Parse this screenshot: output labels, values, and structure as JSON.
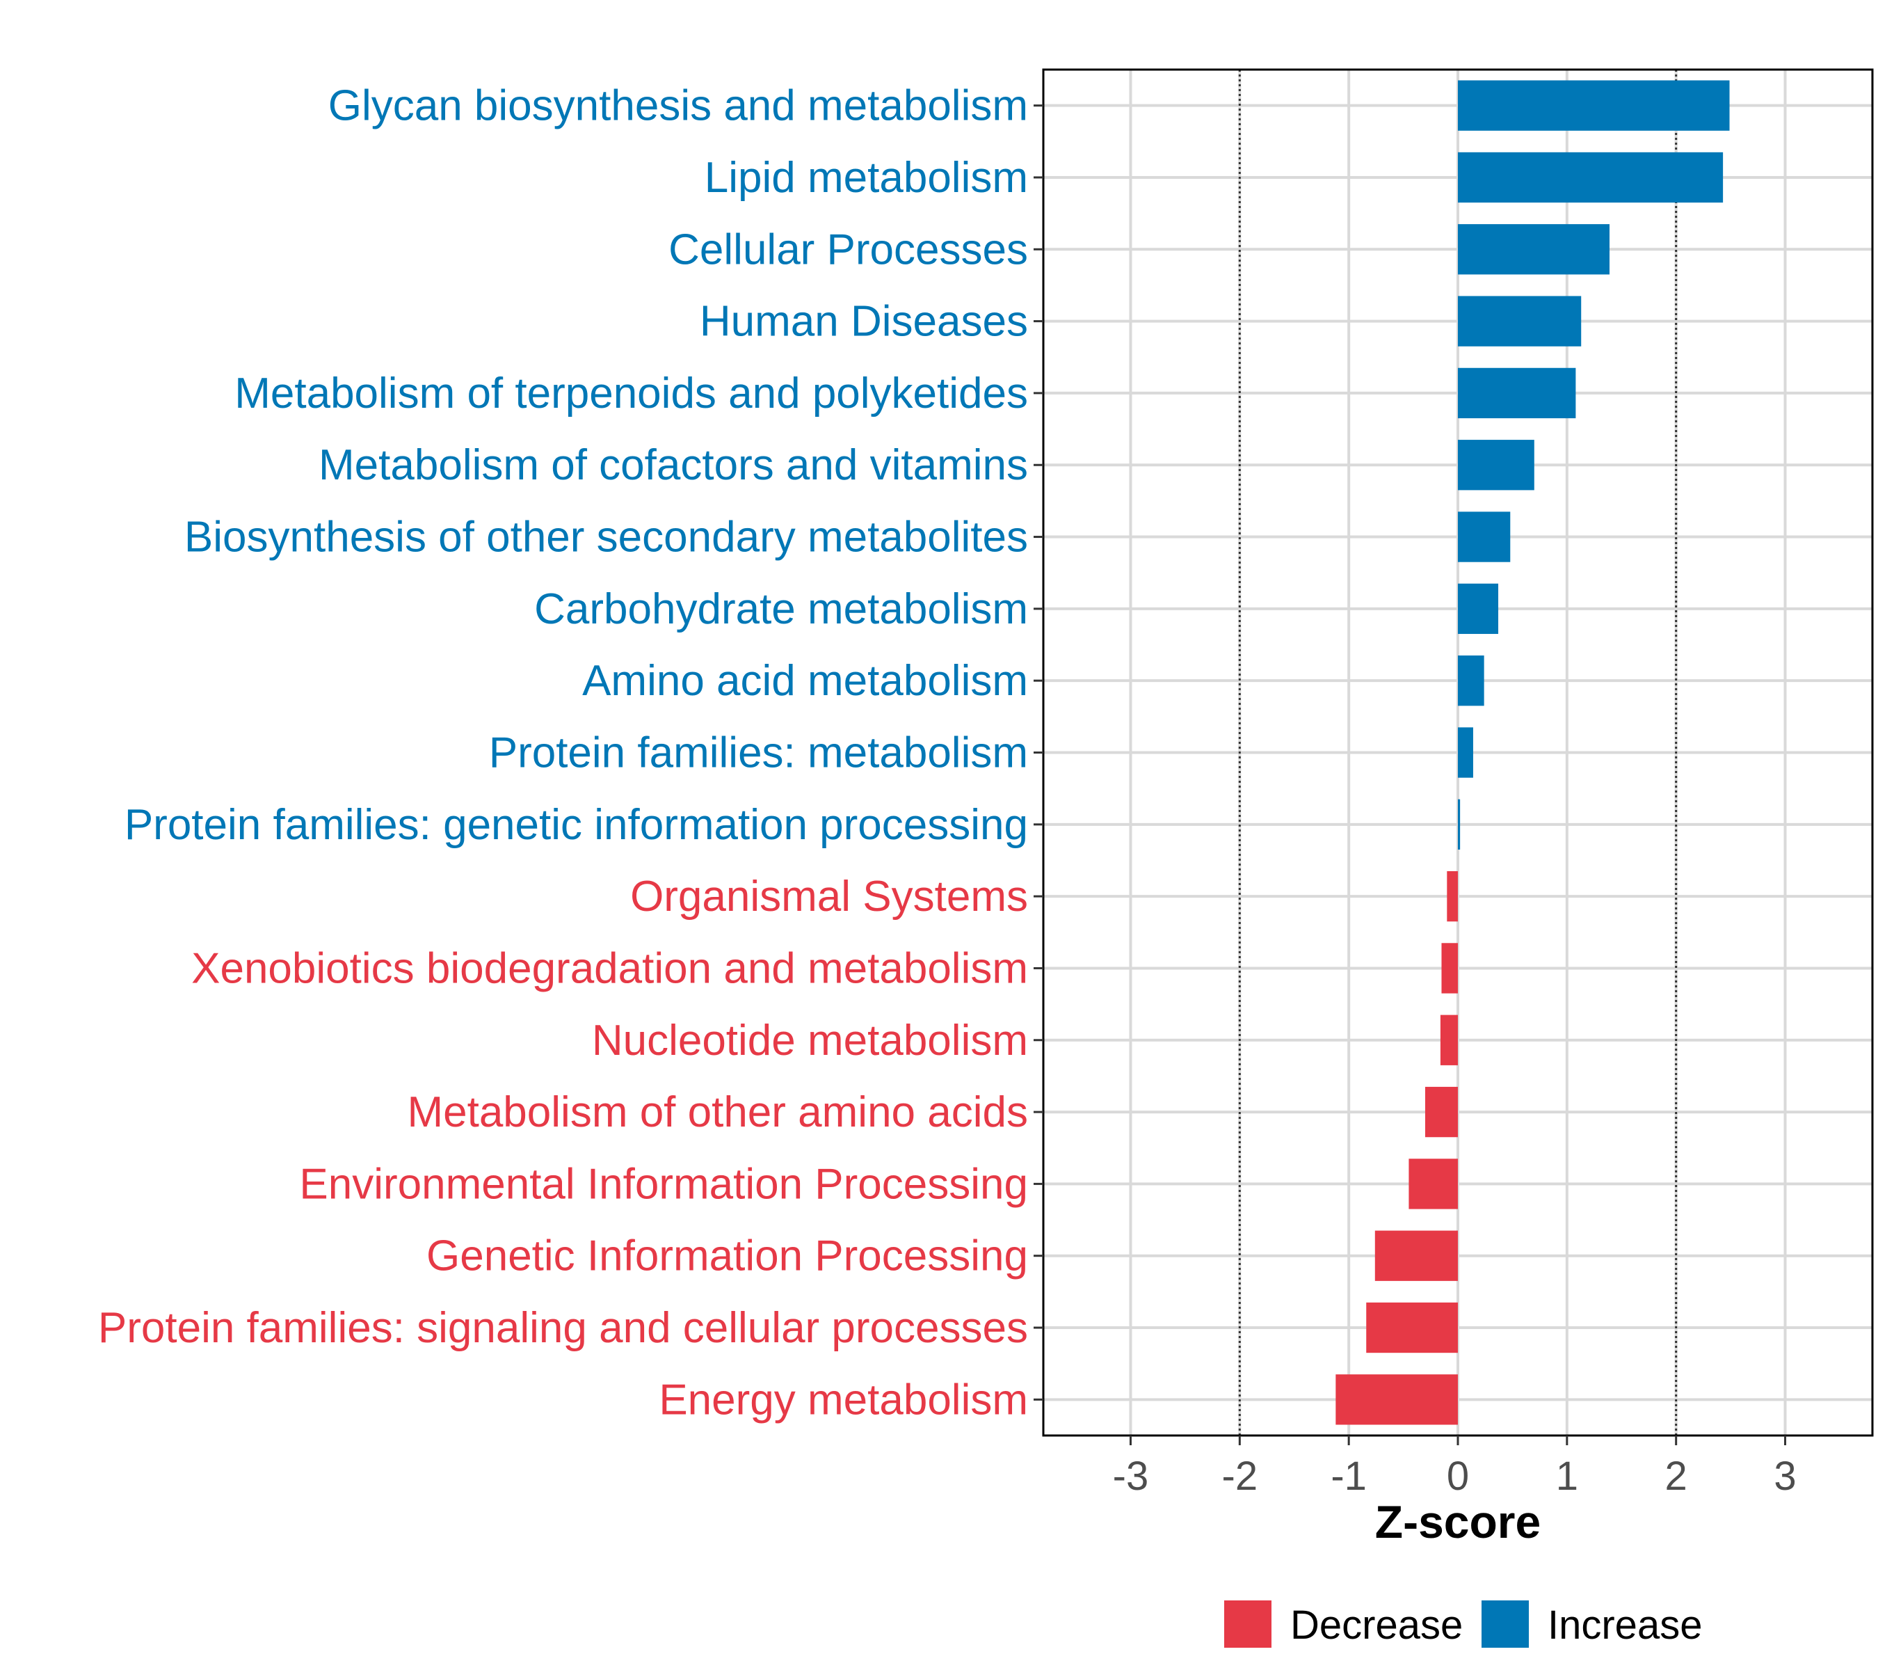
{
  "colors": {
    "increase": "#0077b6",
    "decrease": "#e63946",
    "grid": "#d9d9d9",
    "threshold": "#333333"
  },
  "chart_data": {
    "type": "bar",
    "orientation": "horizontal",
    "xlabel": "Z-score",
    "xlim": [
      -3.8,
      3.8
    ],
    "xticks": [
      -3,
      -2,
      -1,
      0,
      1,
      2,
      3
    ],
    "xtick_labels": [
      "-3",
      "-2",
      "-1",
      "0",
      "1",
      "2",
      "3"
    ],
    "threshold_lines": [
      -2,
      2
    ],
    "grid": true,
    "legend_position": "bottom",
    "legend": [
      {
        "label": "Decrease",
        "group": "decrease"
      },
      {
        "label": "Increase",
        "group": "increase"
      }
    ],
    "categories": [
      "Glycan biosynthesis and metabolism",
      "Lipid metabolism",
      "Cellular Processes",
      "Human Diseases",
      "Metabolism of terpenoids and polyketides",
      "Metabolism of cofactors and vitamins",
      "Biosynthesis of other secondary metabolites",
      "Carbohydrate metabolism",
      "Amino acid metabolism",
      "Protein families: metabolism",
      "Protein families: genetic information processing",
      "Organismal Systems",
      "Xenobiotics biodegradation and metabolism",
      "Nucleotide metabolism",
      "Metabolism of other amino acids",
      "Environmental Information Processing",
      "Genetic Information Processing",
      "Protein families: signaling and cellular processes",
      "Energy metabolism"
    ],
    "values": [
      2.49,
      2.43,
      1.39,
      1.13,
      1.08,
      0.7,
      0.48,
      0.37,
      0.24,
      0.14,
      0.02,
      -0.1,
      -0.15,
      -0.16,
      -0.3,
      -0.45,
      -0.76,
      -0.84,
      -1.12
    ],
    "groups": [
      "increase",
      "increase",
      "increase",
      "increase",
      "increase",
      "increase",
      "increase",
      "increase",
      "increase",
      "increase",
      "increase",
      "decrease",
      "decrease",
      "decrease",
      "decrease",
      "decrease",
      "decrease",
      "decrease",
      "decrease"
    ]
  }
}
